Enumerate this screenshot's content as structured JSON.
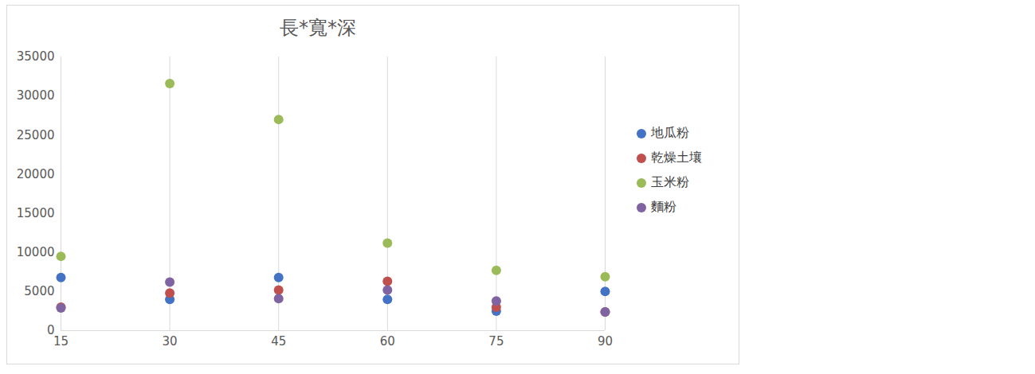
{
  "chart_data": {
    "type": "scatter",
    "title": "長*寬*深",
    "x": [
      15,
      30,
      45,
      60,
      75,
      90
    ],
    "xlim": [
      15,
      90
    ],
    "xticks": [
      15,
      30,
      45,
      60,
      75,
      90
    ],
    "ylim": [
      0,
      35000
    ],
    "yticks": [
      0,
      5000,
      10000,
      15000,
      20000,
      25000,
      30000,
      35000
    ],
    "grid": "x",
    "legend": "right",
    "series": [
      {
        "name": "地瓜粉",
        "color": "#4472c4",
        "values": [
          6800,
          4000,
          6800,
          4000,
          2500,
          5000
        ]
      },
      {
        "name": "乾燥土壤",
        "color": "#c0504d",
        "values": [
          3000,
          4800,
          5200,
          6300,
          3000,
          2400
        ]
      },
      {
        "name": "玉米粉",
        "color": "#9bbb59",
        "values": [
          9500,
          31600,
          27000,
          11200,
          7700,
          6900
        ]
      },
      {
        "name": "麵粉",
        "color": "#8064a2",
        "values": [
          2900,
          6200,
          4100,
          5200,
          3800,
          2400
        ]
      }
    ]
  }
}
